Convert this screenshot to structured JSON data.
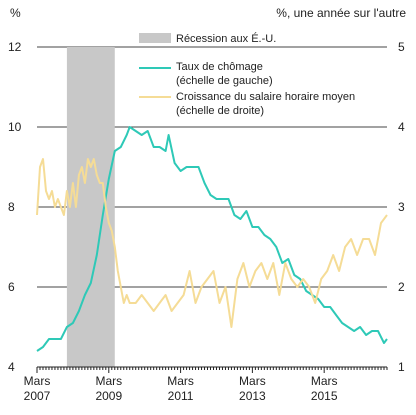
{
  "chart_data": {
    "type": "line",
    "left_axis_label": "%",
    "right_axis_label": "%, une année sur l'autre",
    "x_start": "2007-03",
    "x_end": "2016-12",
    "y_left_lim": [
      4,
      12
    ],
    "y_left_ticks": [
      4,
      6,
      8,
      10,
      12
    ],
    "y_right_lim": [
      1,
      5
    ],
    "y_right_ticks": [
      1,
      2,
      3,
      4,
      5
    ],
    "x_ticks": [
      {
        "date": "2007-03",
        "line1": "Mars",
        "line2": "2007"
      },
      {
        "date": "2009-03",
        "line1": "Mars",
        "line2": "2009"
      },
      {
        "date": "2011-03",
        "line1": "Mars",
        "line2": "2011"
      },
      {
        "date": "2013-03",
        "line1": "Mars",
        "line2": "2013"
      },
      {
        "date": "2015-03",
        "line1": "Mars",
        "line2": "2015"
      }
    ],
    "grid": "horizontal",
    "recession": {
      "start": "2008-01",
      "end": "2009-05",
      "label": "Récession aux É.-U.",
      "color": "#c8c8c8"
    },
    "legend_position": "top",
    "series": [
      {
        "name_line1": "Taux de chômage",
        "name_line2": "(échelle de gauche)",
        "axis": "left",
        "color": "#2ec9b7",
        "points": [
          [
            "2007-03",
            4.4
          ],
          [
            "2007-05",
            4.5
          ],
          [
            "2007-07",
            4.7
          ],
          [
            "2007-09",
            4.7
          ],
          [
            "2007-11",
            4.7
          ],
          [
            "2008-01",
            5.0
          ],
          [
            "2008-03",
            5.1
          ],
          [
            "2008-05",
            5.4
          ],
          [
            "2008-07",
            5.8
          ],
          [
            "2008-09",
            6.1
          ],
          [
            "2008-11",
            6.8
          ],
          [
            "2009-01",
            7.8
          ],
          [
            "2009-03",
            8.7
          ],
          [
            "2009-05",
            9.4
          ],
          [
            "2009-07",
            9.5
          ],
          [
            "2009-09",
            9.8
          ],
          [
            "2009-10",
            10.0
          ],
          [
            "2009-12",
            9.9
          ],
          [
            "2010-02",
            9.8
          ],
          [
            "2010-04",
            9.9
          ],
          [
            "2010-06",
            9.5
          ],
          [
            "2010-08",
            9.5
          ],
          [
            "2010-10",
            9.4
          ],
          [
            "2010-11",
            9.8
          ],
          [
            "2011-01",
            9.1
          ],
          [
            "2011-03",
            8.9
          ],
          [
            "2011-05",
            9.0
          ],
          [
            "2011-07",
            9.0
          ],
          [
            "2011-09",
            9.0
          ],
          [
            "2011-11",
            8.6
          ],
          [
            "2012-01",
            8.3
          ],
          [
            "2012-03",
            8.2
          ],
          [
            "2012-05",
            8.2
          ],
          [
            "2012-07",
            8.2
          ],
          [
            "2012-09",
            7.8
          ],
          [
            "2012-11",
            7.7
          ],
          [
            "2013-01",
            7.9
          ],
          [
            "2013-03",
            7.5
          ],
          [
            "2013-05",
            7.5
          ],
          [
            "2013-07",
            7.3
          ],
          [
            "2013-09",
            7.2
          ],
          [
            "2013-11",
            7.0
          ],
          [
            "2014-01",
            6.6
          ],
          [
            "2014-03",
            6.7
          ],
          [
            "2014-05",
            6.3
          ],
          [
            "2014-07",
            6.2
          ],
          [
            "2014-09",
            5.9
          ],
          [
            "2014-11",
            5.8
          ],
          [
            "2015-01",
            5.7
          ],
          [
            "2015-03",
            5.5
          ],
          [
            "2015-05",
            5.5
          ],
          [
            "2015-07",
            5.3
          ],
          [
            "2015-09",
            5.1
          ],
          [
            "2015-11",
            5.0
          ],
          [
            "2016-01",
            4.9
          ],
          [
            "2016-03",
            5.0
          ],
          [
            "2016-05",
            4.8
          ],
          [
            "2016-07",
            4.9
          ],
          [
            "2016-09",
            4.9
          ],
          [
            "2016-11",
            4.6
          ],
          [
            "2016-12",
            4.7
          ]
        ]
      },
      {
        "name_line1": "Croissance du salaire horaire moyen",
        "name_line2": "(échelle de droite)",
        "axis": "right",
        "color": "#f5dc96",
        "points": [
          [
            "2007-03",
            2.9
          ],
          [
            "2007-04",
            3.5
          ],
          [
            "2007-05",
            3.6
          ],
          [
            "2007-06",
            3.2
          ],
          [
            "2007-07",
            3.1
          ],
          [
            "2007-08",
            3.2
          ],
          [
            "2007-09",
            3.0
          ],
          [
            "2007-10",
            3.1
          ],
          [
            "2007-11",
            3.0
          ],
          [
            "2007-12",
            2.9
          ],
          [
            "2008-01",
            3.2
          ],
          [
            "2008-02",
            3.0
          ],
          [
            "2008-03",
            3.3
          ],
          [
            "2008-04",
            3.0
          ],
          [
            "2008-05",
            3.4
          ],
          [
            "2008-06",
            3.5
          ],
          [
            "2008-07",
            3.3
          ],
          [
            "2008-08",
            3.6
          ],
          [
            "2008-09",
            3.5
          ],
          [
            "2008-10",
            3.6
          ],
          [
            "2008-11",
            3.4
          ],
          [
            "2008-12",
            3.3
          ],
          [
            "2009-01",
            3.3
          ],
          [
            "2009-02",
            3.0
          ],
          [
            "2009-03",
            2.8
          ],
          [
            "2009-04",
            2.7
          ],
          [
            "2009-05",
            2.5
          ],
          [
            "2009-06",
            2.2
          ],
          [
            "2009-07",
            2.0
          ],
          [
            "2009-08",
            1.8
          ],
          [
            "2009-09",
            1.9
          ],
          [
            "2009-10",
            1.8
          ],
          [
            "2009-12",
            1.8
          ],
          [
            "2010-02",
            1.9
          ],
          [
            "2010-04",
            1.8
          ],
          [
            "2010-06",
            1.7
          ],
          [
            "2010-08",
            1.8
          ],
          [
            "2010-10",
            1.9
          ],
          [
            "2010-12",
            1.7
          ],
          [
            "2011-02",
            1.8
          ],
          [
            "2011-04",
            1.9
          ],
          [
            "2011-06",
            2.2
          ],
          [
            "2011-08",
            1.8
          ],
          [
            "2011-10",
            2.0
          ],
          [
            "2011-12",
            2.1
          ],
          [
            "2012-02",
            2.2
          ],
          [
            "2012-04",
            1.8
          ],
          [
            "2012-06",
            2.0
          ],
          [
            "2012-08",
            1.5
          ],
          [
            "2012-10",
            2.1
          ],
          [
            "2012-12",
            2.3
          ],
          [
            "2013-02",
            2.0
          ],
          [
            "2013-04",
            2.2
          ],
          [
            "2013-06",
            2.3
          ],
          [
            "2013-08",
            2.1
          ],
          [
            "2013-10",
            2.3
          ],
          [
            "2013-12",
            1.9
          ],
          [
            "2014-02",
            2.3
          ],
          [
            "2014-04",
            2.1
          ],
          [
            "2014-06",
            2.0
          ],
          [
            "2014-08",
            2.1
          ],
          [
            "2014-10",
            2.0
          ],
          [
            "2014-12",
            1.8
          ],
          [
            "2015-02",
            2.1
          ],
          [
            "2015-04",
            2.2
          ],
          [
            "2015-06",
            2.4
          ],
          [
            "2015-08",
            2.2
          ],
          [
            "2015-10",
            2.5
          ],
          [
            "2015-12",
            2.6
          ],
          [
            "2016-02",
            2.4
          ],
          [
            "2016-04",
            2.6
          ],
          [
            "2016-06",
            2.6
          ],
          [
            "2016-08",
            2.4
          ],
          [
            "2016-10",
            2.8
          ],
          [
            "2016-12",
            2.9
          ]
        ]
      }
    ]
  }
}
